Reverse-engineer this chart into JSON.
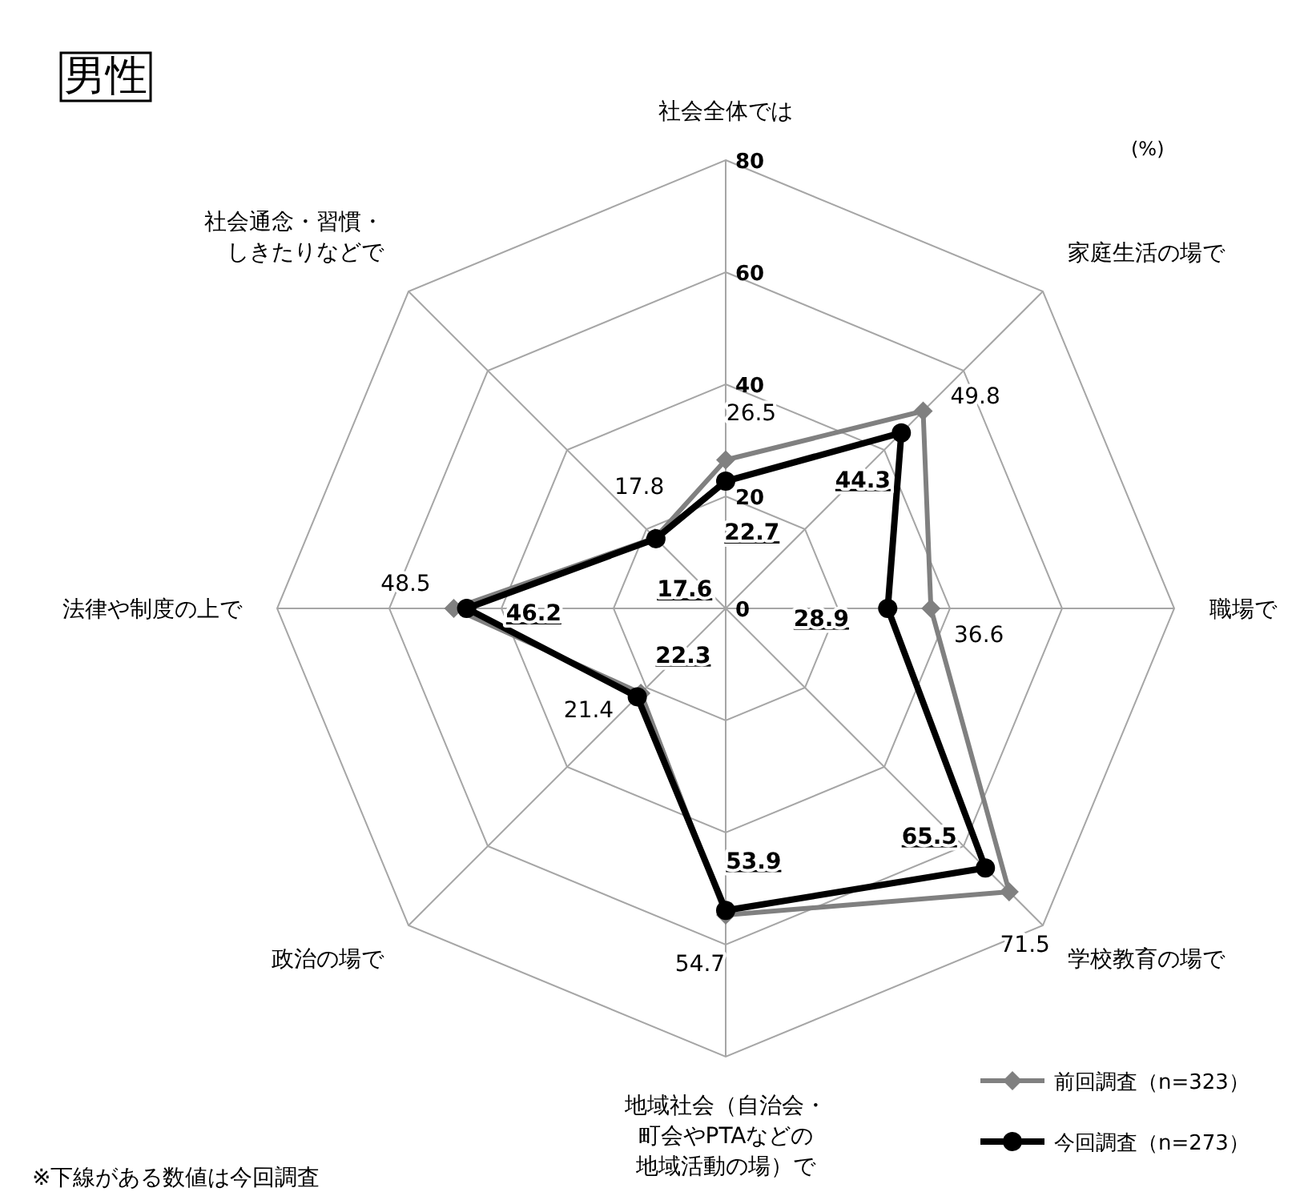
{
  "chart_data": {
    "type": "radar",
    "title": "男性",
    "categories": [
      "社会全体では",
      "家庭生活の場で",
      "職場で",
      "学校教育の場で",
      "地域社会（自治会・町会やPTAなどの地域活動の場）で",
      "政治の場で",
      "法律や制度の上で",
      "社会通念・習慣・しきたりなどで"
    ],
    "series": [
      {
        "name": "前回調査（n=323）",
        "color": "#808080",
        "marker": "diamond",
        "values": [
          26.5,
          49.8,
          36.6,
          71.5,
          54.7,
          21.4,
          48.5,
          17.8
        ]
      },
      {
        "name": "今回調査（n=273）",
        "color": "#000000",
        "marker": "circle",
        "values": [
          22.7,
          44.3,
          28.9,
          65.5,
          53.9,
          22.3,
          46.2,
          17.6
        ]
      }
    ],
    "ylim": [
      0,
      80
    ],
    "yticks": [
      0,
      20,
      40,
      60,
      80
    ],
    "grid": true,
    "data_labels": true,
    "legend": "bottom right",
    "annotations": [
      "(%)",
      "※下線がある数値は今回調査"
    ]
  }
}
